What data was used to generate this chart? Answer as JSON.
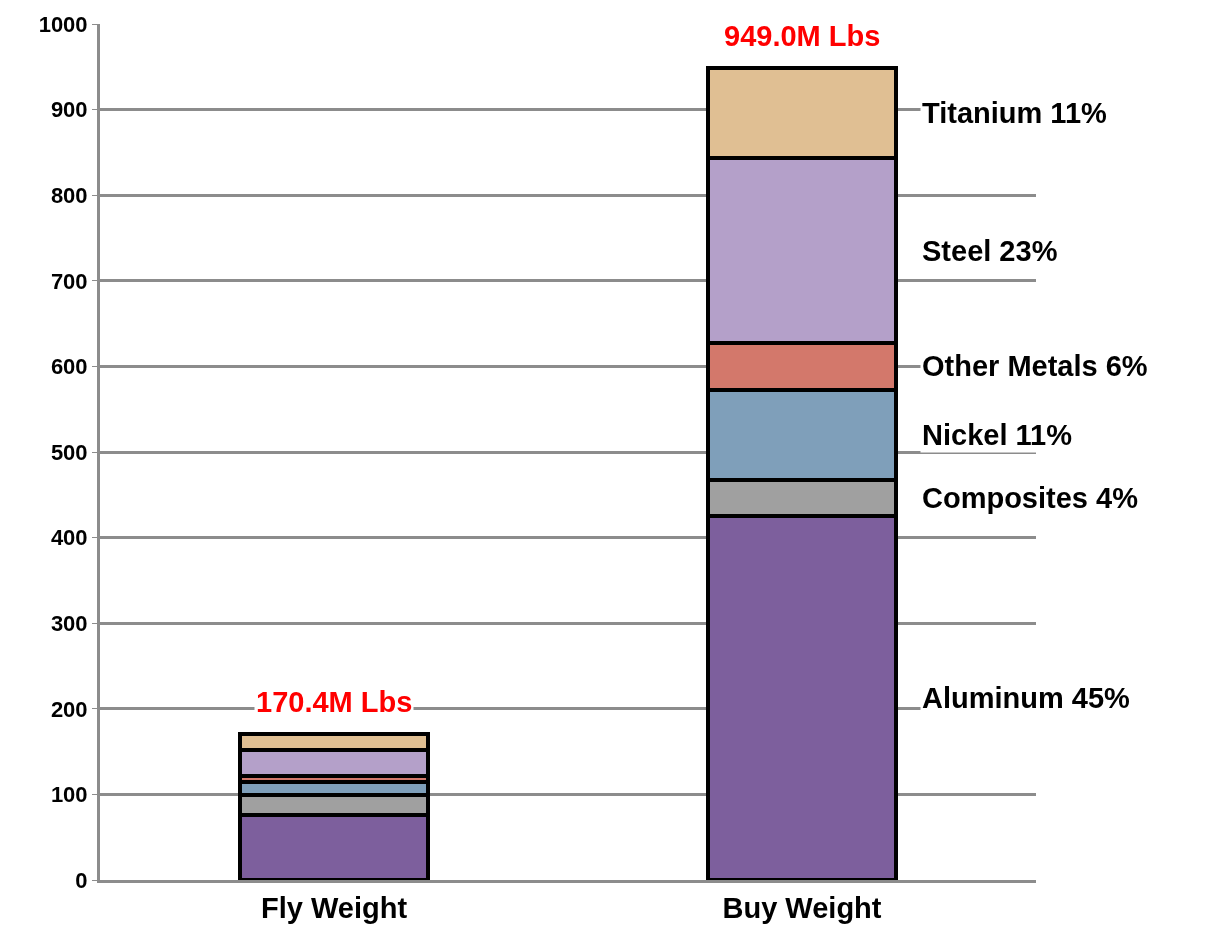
{
  "chart_data": {
    "type": "bar",
    "stacked": true,
    "categories": [
      "Fly Weight",
      "Buy Weight"
    ],
    "series": [
      {
        "name": "Aluminum 45%",
        "color": "#7d5f9d",
        "values": [
          76,
          425
        ]
      },
      {
        "name": "Composites 4%",
        "color": "#a0a0a0",
        "values": [
          23,
          42
        ]
      },
      {
        "name": "Nickel 11%",
        "color": "#7f9fba",
        "values": [
          15,
          106
        ]
      },
      {
        "name": "Other Metals 6%",
        "color": "#d3786b",
        "values": [
          7,
          54
        ]
      },
      {
        "name": "Steel 23%",
        "color": "#b4a0c9",
        "values": [
          31,
          216
        ]
      },
      {
        "name": "Titanium 11%",
        "color": "#e0bf93",
        "values": [
          18.4,
          106
        ]
      }
    ],
    "totals": [
      "170.4M Lbs",
      "949.0M Lbs"
    ],
    "ylim": [
      0,
      1000
    ],
    "yticks": [
      0,
      100,
      200,
      300,
      400,
      500,
      600,
      700,
      800,
      900,
      1000
    ],
    "grid": "y",
    "legend": false
  }
}
